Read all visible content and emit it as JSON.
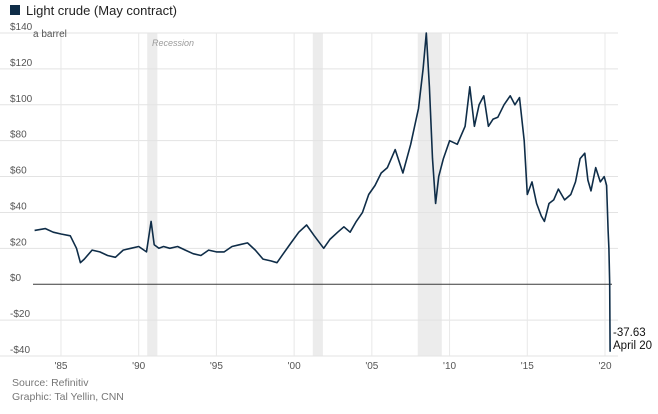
{
  "legend": {
    "label": "Light crude (May contract)",
    "color": "#0f2d48"
  },
  "y_unit_label": "a barrel",
  "recession_label": "Recession",
  "callout": {
    "value": "-37.63",
    "date": "April 20"
  },
  "footer": {
    "source": "Source: Refinitiv",
    "graphic": "Graphic: Tal Yellin, CNN"
  },
  "chart_data": {
    "type": "line",
    "title": "Light crude (May contract)",
    "xlabel": "",
    "ylabel": "$ a barrel",
    "xlim": [
      1983.2,
      2020.45
    ],
    "ylim": [
      -40,
      140
    ],
    "y_ticks": [
      -40,
      -20,
      0,
      20,
      40,
      60,
      80,
      100,
      120,
      140
    ],
    "y_tick_labels": [
      "-$40",
      "-$20",
      "$0",
      "$20",
      "$40",
      "$60",
      "$80",
      "$100",
      "$120",
      "$140"
    ],
    "x_ticks": [
      1985,
      1990,
      1995,
      2000,
      2005,
      2010,
      2015,
      2020
    ],
    "x_tick_labels": [
      "'85",
      "'90",
      "'95",
      "'00",
      "'05",
      "'10",
      "'15",
      "'20"
    ],
    "grid": true,
    "recessions": [
      [
        1990.55,
        1991.2
      ],
      [
        2001.2,
        2001.85
      ],
      [
        2007.95,
        2009.5
      ]
    ],
    "series": [
      {
        "name": "Light crude (May contract)",
        "x": [
          1983.3,
          1984.0,
          1984.5,
          1985.0,
          1985.6,
          1986.0,
          1986.25,
          1986.5,
          1987.0,
          1987.5,
          1988.0,
          1988.5,
          1989.0,
          1989.5,
          1990.0,
          1990.5,
          1990.8,
          1991.0,
          1991.3,
          1991.6,
          1992.0,
          1992.5,
          1993.0,
          1993.5,
          1994.0,
          1994.5,
          1995.0,
          1995.5,
          1996.0,
          1996.5,
          1997.0,
          1997.5,
          1998.0,
          1998.5,
          1998.9,
          1999.3,
          1999.8,
          2000.3,
          2000.8,
          2001.3,
          2001.9,
          2002.3,
          2002.8,
          2003.2,
          2003.6,
          2004.0,
          2004.4,
          2004.8,
          2005.2,
          2005.6,
          2006.0,
          2006.5,
          2007.0,
          2007.5,
          2008.0,
          2008.3,
          2008.5,
          2008.7,
          2008.9,
          2009.1,
          2009.3,
          2009.6,
          2010.0,
          2010.5,
          2011.0,
          2011.3,
          2011.6,
          2011.9,
          2012.2,
          2012.5,
          2012.8,
          2013.1,
          2013.5,
          2013.9,
          2014.2,
          2014.5,
          2014.8,
          2015.0,
          2015.3,
          2015.6,
          2015.9,
          2016.1,
          2016.4,
          2016.7,
          2017.0,
          2017.4,
          2017.8,
          2018.1,
          2018.4,
          2018.7,
          2018.9,
          2019.1,
          2019.4,
          2019.7,
          2019.95,
          2020.1,
          2020.2,
          2020.25,
          2020.3,
          2020.33
        ],
        "values": [
          30,
          31,
          29,
          28,
          27,
          20,
          12,
          14,
          19,
          18,
          16,
          15,
          19,
          20,
          21,
          18,
          35,
          22,
          20,
          21,
          20,
          21,
          19,
          17,
          16,
          19,
          18,
          18,
          21,
          22,
          23,
          19,
          14,
          13,
          12,
          17,
          23,
          29,
          33,
          27,
          20,
          25,
          29,
          32,
          29,
          35,
          40,
          50,
          55,
          62,
          65,
          75,
          62,
          78,
          98,
          120,
          140,
          110,
          70,
          45,
          60,
          70,
          80,
          78,
          88,
          110,
          88,
          100,
          105,
          88,
          92,
          93,
          100,
          105,
          100,
          104,
          80,
          50,
          57,
          45,
          38,
          35,
          45,
          47,
          53,
          47,
          50,
          57,
          70,
          73,
          58,
          52,
          65,
          57,
          60,
          55,
          30,
          20,
          0,
          -37.63
        ]
      }
    ]
  }
}
